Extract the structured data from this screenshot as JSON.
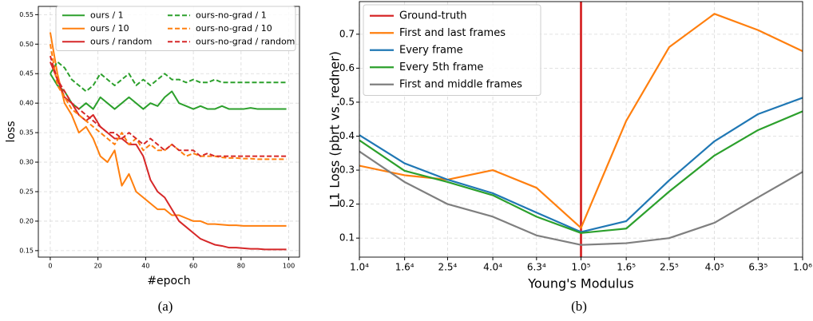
{
  "chart_data": [
    {
      "type": "line",
      "caption": "(a)",
      "xlabel": "#epoch",
      "ylabel": "loss",
      "xlim": [
        -5,
        104.5
      ],
      "ylim": [
        0.139,
        0.564
      ],
      "xticks": [
        0,
        20,
        40,
        60,
        80,
        100
      ],
      "yticks": [
        0.15,
        {
          "value": 0.2,
          "label": "0.20"
        },
        0.25,
        {
          "value": 0.3,
          "label": "0.30"
        },
        0.35,
        {
          "value": 0.4,
          "label": "0.40"
        },
        0.45,
        {
          "value": 0.5,
          "label": "0.50"
        },
        0.55
      ],
      "grid": true,
      "legend": "upper center",
      "legend_columns": 2,
      "x": [
        0,
        3,
        6,
        9,
        12,
        15,
        18,
        21,
        24,
        27,
        30,
        33,
        36,
        39,
        42,
        45,
        48,
        51,
        54,
        57,
        60,
        63,
        66,
        69,
        72,
        75,
        78,
        81,
        84,
        87,
        90,
        93,
        96,
        99
      ],
      "series": [
        {
          "name": "ours / 1",
          "color": "#2ca02c",
          "dashed": false,
          "values": [
            0.45,
            0.43,
            0.42,
            0.4,
            0.39,
            0.4,
            0.39,
            0.41,
            0.4,
            0.39,
            0.4,
            0.41,
            0.4,
            0.39,
            0.4,
            0.395,
            0.41,
            0.42,
            0.4,
            0.395,
            0.39,
            0.395,
            0.39,
            0.39,
            0.395,
            0.39,
            0.39,
            0.39,
            0.392,
            0.39,
            0.39,
            0.39,
            0.39,
            0.39
          ]
        },
        {
          "name": "ours / 10",
          "color": "#ff7f0e",
          "dashed": false,
          "values": [
            0.52,
            0.45,
            0.4,
            0.38,
            0.35,
            0.36,
            0.34,
            0.31,
            0.3,
            0.32,
            0.26,
            0.28,
            0.25,
            0.24,
            0.23,
            0.22,
            0.22,
            0.21,
            0.21,
            0.205,
            0.2,
            0.2,
            0.195,
            0.195,
            0.194,
            0.193,
            0.193,
            0.192,
            0.192,
            0.192,
            0.192,
            0.192,
            0.192,
            0.192
          ]
        },
        {
          "name": "ours / random",
          "color": "#d62728",
          "dashed": false,
          "values": [
            0.47,
            0.44,
            0.41,
            0.4,
            0.38,
            0.37,
            0.38,
            0.36,
            0.35,
            0.34,
            0.34,
            0.33,
            0.33,
            0.31,
            0.27,
            0.25,
            0.24,
            0.22,
            0.2,
            0.19,
            0.18,
            0.17,
            0.165,
            0.16,
            0.158,
            0.155,
            0.155,
            0.154,
            0.153,
            0.153,
            0.152,
            0.152,
            0.152,
            0.152
          ]
        },
        {
          "name": "ours-no-grad / 1",
          "color": "#2ca02c",
          "dashed": true,
          "values": [
            0.45,
            0.47,
            0.46,
            0.44,
            0.43,
            0.42,
            0.43,
            0.45,
            0.44,
            0.43,
            0.44,
            0.45,
            0.43,
            0.44,
            0.43,
            0.44,
            0.45,
            0.44,
            0.44,
            0.435,
            0.44,
            0.435,
            0.435,
            0.44,
            0.435,
            0.435,
            0.435,
            0.435,
            0.435,
            0.435,
            0.435,
            0.435,
            0.435,
            0.435
          ]
        },
        {
          "name": "ours-no-grad / 10",
          "color": "#ff7f0e",
          "dashed": true,
          "values": [
            0.5,
            0.43,
            0.41,
            0.39,
            0.38,
            0.37,
            0.36,
            0.35,
            0.34,
            0.33,
            0.35,
            0.33,
            0.34,
            0.32,
            0.33,
            0.32,
            0.32,
            0.33,
            0.32,
            0.31,
            0.315,
            0.31,
            0.31,
            0.31,
            0.308,
            0.307,
            0.307,
            0.306,
            0.306,
            0.305,
            0.305,
            0.305,
            0.305,
            0.305
          ]
        },
        {
          "name": "ours-no-grad / random",
          "color": "#d62728",
          "dashed": true,
          "values": [
            0.48,
            0.44,
            0.42,
            0.4,
            0.39,
            0.38,
            0.37,
            0.36,
            0.35,
            0.35,
            0.34,
            0.35,
            0.34,
            0.33,
            0.34,
            0.33,
            0.32,
            0.33,
            0.32,
            0.32,
            0.32,
            0.31,
            0.315,
            0.31,
            0.31,
            0.31,
            0.31,
            0.31,
            0.31,
            0.31,
            0.31,
            0.31,
            0.31,
            0.31
          ]
        }
      ]
    },
    {
      "type": "line",
      "caption": "(b)",
      "xlabel": "Young's Modulus",
      "ylabel": "L1 Loss (pbrt vs. redner)",
      "xscale": "log",
      "xlim": [
        10000,
        1000000
      ],
      "ylim": [
        0.044,
        0.796
      ],
      "xticks": [
        {
          "value": 10000,
          "label": "1.0⁴"
        },
        {
          "value": 16000,
          "label": "1.6⁴"
        },
        {
          "value": 25000,
          "label": "2.5⁴"
        },
        {
          "value": 40000,
          "label": "4.0⁴"
        },
        {
          "value": 63000,
          "label": "6.3⁴"
        },
        {
          "value": 100000,
          "label": "1.0⁵"
        },
        {
          "value": 160000,
          "label": "1.6⁵"
        },
        {
          "value": 250000,
          "label": "2.5⁵"
        },
        {
          "value": 400000,
          "label": "4.0⁵"
        },
        {
          "value": 630000,
          "label": "6.3⁵"
        },
        {
          "value": 1000000,
          "label": "1.0⁶"
        }
      ],
      "yticks": [
        0.1,
        0.2,
        0.3,
        0.4,
        0.5,
        0.6,
        0.7
      ],
      "grid": true,
      "legend": "upper left",
      "legend_columns": 1,
      "x": [
        10000,
        16000,
        25000,
        40000,
        63000,
        100000,
        160000,
        250000,
        400000,
        630000,
        1000000
      ],
      "series": [
        {
          "name": "Ground-truth",
          "color": "#d62728",
          "vline": 100000
        },
        {
          "name": "First and last frames",
          "color": "#ff7f0e",
          "values": [
            0.313,
            0.285,
            0.272,
            0.3,
            0.248,
            0.13,
            0.445,
            0.662,
            0.76,
            0.712,
            0.65
          ]
        },
        {
          "name": "Every frame",
          "color": "#1f77b4",
          "values": [
            0.403,
            0.32,
            0.272,
            0.232,
            0.175,
            0.118,
            0.15,
            0.27,
            0.385,
            0.465,
            0.513
          ]
        },
        {
          "name": "Every 5th frame",
          "color": "#2ca02c",
          "values": [
            0.388,
            0.298,
            0.265,
            0.226,
            0.163,
            0.115,
            0.128,
            0.237,
            0.343,
            0.418,
            0.473
          ]
        },
        {
          "name": "First and middle frames",
          "color": "#7f7f7f",
          "values": [
            0.355,
            0.265,
            0.2,
            0.163,
            0.108,
            0.08,
            0.085,
            0.1,
            0.145,
            0.22,
            0.295
          ]
        }
      ]
    }
  ]
}
